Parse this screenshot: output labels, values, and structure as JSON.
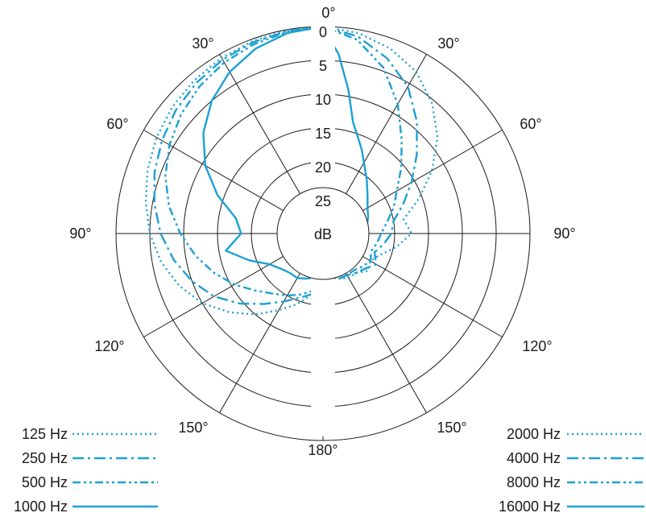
{
  "chart_data": {
    "type": "polar",
    "title": "",
    "unit_label": "dB",
    "radial_axis": {
      "range_db": [
        0,
        25
      ],
      "ticks": [
        "0",
        "5",
        "10",
        "15",
        "20",
        "25"
      ],
      "tick_values": [
        0,
        5,
        10,
        15,
        20,
        25
      ]
    },
    "angle_labels": {
      "top": "0°",
      "upper_left": "30°",
      "upper_right": "30°",
      "mid_upper_left": "60°",
      "mid_upper_right": "60°",
      "left": "90°",
      "right": "90°",
      "lower_left": "120°",
      "lower_right": "120°",
      "bottom_left": "150°",
      "bottom_right": "150°",
      "bottom": "180°"
    },
    "color": "#1ba1d4",
    "series": [
      {
        "name": "125 Hz",
        "side": "left",
        "dash": "dotted",
        "angles": [
          0,
          10,
          20,
          30,
          40,
          50,
          60,
          70,
          80,
          90,
          100,
          110,
          120,
          130,
          140,
          150,
          160,
          170,
          180
        ],
        "db": [
          0,
          0.1,
          0.3,
          0.6,
          1.0,
          1.5,
          2.2,
          3.0,
          4.0,
          5.0,
          6.3,
          8.0,
          10.0,
          12.5,
          15.0,
          17.5,
          19.5,
          21.5,
          22.5
        ]
      },
      {
        "name": "250 Hz",
        "side": "left",
        "dash": "dash-dot",
        "angles": [
          0,
          10,
          20,
          30,
          40,
          50,
          60,
          70,
          80,
          90,
          100,
          110,
          120,
          130,
          140,
          150,
          160,
          170,
          180
        ],
        "db": [
          0,
          0.2,
          0.5,
          0.9,
          1.5,
          2.2,
          3.1,
          4.1,
          5.3,
          6.6,
          8.2,
          10.0,
          12.0,
          14.5,
          17.0,
          19.0,
          20.5,
          21.5,
          22.0
        ]
      },
      {
        "name": "500 Hz",
        "side": "left",
        "dash": "dash-dot-dot",
        "angles": [
          0,
          10,
          20,
          30,
          40,
          50,
          60,
          70,
          80,
          90,
          100,
          110,
          120,
          130,
          140,
          150,
          160,
          170,
          180
        ],
        "db": [
          0,
          0.3,
          0.8,
          1.4,
          2.2,
          3.2,
          4.4,
          5.8,
          7.5,
          9.5,
          11.5,
          13.5,
          15.5,
          17.5,
          19.0,
          20.0,
          21.0,
          22.0,
          22.5
        ]
      },
      {
        "name": "1000 Hz",
        "side": "left",
        "dash": "solid",
        "angles": [
          0,
          10,
          20,
          30,
          40,
          50,
          60,
          70,
          80,
          90,
          100,
          110,
          120,
          130,
          140,
          150,
          160,
          170,
          180
        ],
        "db": [
          0,
          0.5,
          1.5,
          3.0,
          5.0,
          7.5,
          10.5,
          14.0,
          17.5,
          18.5,
          16.0,
          19.0,
          21.5,
          22.5,
          23.0,
          23.0,
          23.5,
          24.0,
          24.5
        ]
      },
      {
        "name": "2000 Hz",
        "side": "right",
        "dash": "dotted",
        "angles": [
          0,
          10,
          20,
          30,
          40,
          50,
          60,
          70,
          80,
          90,
          100,
          110,
          120,
          130,
          140,
          150,
          160,
          170,
          180
        ],
        "db": [
          0,
          0.5,
          1.5,
          3.0,
          5.5,
          8.5,
          12.0,
          15.5,
          18.5,
          17.5,
          19.5,
          21.5,
          22.5,
          22.0,
          23.0,
          23.0,
          23.5,
          24.0,
          24.5
        ]
      },
      {
        "name": "4000 Hz",
        "side": "right",
        "dash": "dash-dot",
        "angles": [
          0,
          10,
          20,
          30,
          40,
          50,
          60,
          70,
          80,
          90,
          100,
          110,
          120,
          130,
          140,
          150,
          160,
          170,
          180
        ],
        "db": [
          0,
          1.0,
          3.0,
          5.5,
          9.0,
          12.5,
          15.5,
          18.0,
          20.0,
          20.5,
          21.5,
          22.5,
          21.5,
          22.5,
          23.0,
          23.5,
          23.5,
          24.0,
          24.5
        ]
      },
      {
        "name": "8000 Hz",
        "side": "right",
        "dash": "dash-dot-dot",
        "angles": [
          0,
          10,
          20,
          30,
          40,
          50,
          60,
          70,
          80,
          90,
          100,
          110,
          120,
          130,
          140,
          150,
          160,
          170,
          180
        ],
        "db": [
          0,
          1.5,
          4.5,
          8.5,
          12.5,
          15.5,
          18.0,
          19.5,
          21.0,
          22.0,
          22.5,
          23.0,
          22.5,
          23.0,
          23.5,
          23.5,
          24.0,
          24.0,
          24.5
        ]
      },
      {
        "name": "16000 Hz",
        "side": "right",
        "dash": "solid",
        "angles": [
          0,
          5,
          10,
          15,
          20,
          25,
          30,
          40,
          50,
          60,
          70,
          80,
          90,
          100,
          110,
          120,
          130,
          140,
          150,
          160,
          170,
          180
        ],
        "db": [
          0,
          4.0,
          9.0,
          13.5,
          15.5,
          17.0,
          18.5,
          20.5,
          22.0,
          23.0,
          23.5,
          24.0,
          24.5,
          24.5,
          24.5,
          24.5,
          24.5,
          24.5,
          24.5,
          24.5,
          24.5,
          24.5
        ]
      }
    ]
  }
}
